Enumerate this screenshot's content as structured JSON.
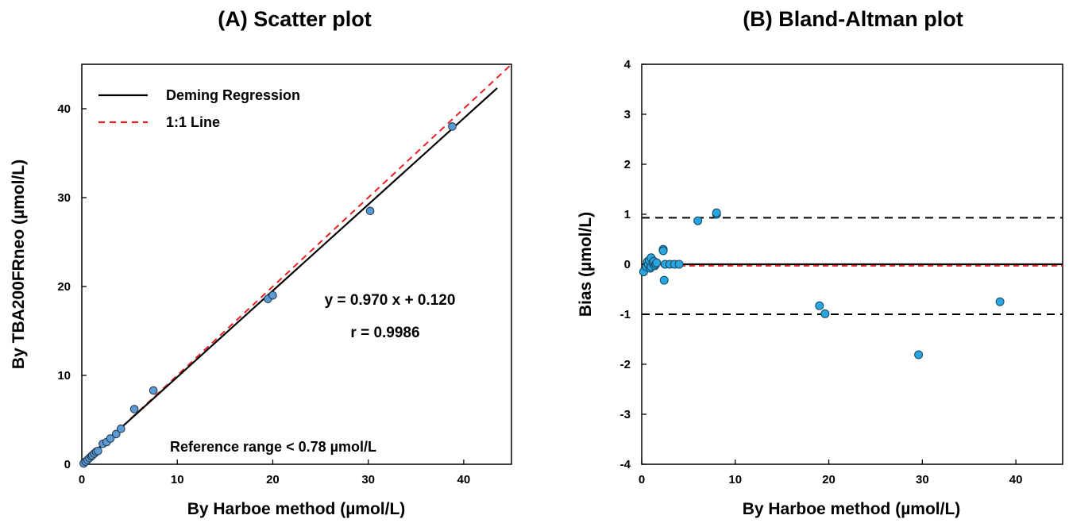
{
  "chart_data": [
    {
      "type": "scatter",
      "title": "(A) Scatter plot",
      "xlabel": "By Harboe method (µmol/L)",
      "ylabel": "By TBA200FRneo (µmol/L)",
      "xlim": [
        0,
        45
      ],
      "ylim": [
        0,
        45
      ],
      "xticks": [
        0,
        10,
        20,
        30,
        40
      ],
      "yticks": [
        0,
        10,
        20,
        30,
        40
      ],
      "grid": false,
      "legend_position": "top-left",
      "series": [
        {
          "name": "",
          "color": "#5b9bd5",
          "points": [
            [
              0.2,
              0.1
            ],
            [
              0.4,
              0.3
            ],
            [
              0.6,
              0.5
            ],
            [
              0.8,
              0.7
            ],
            [
              1.0,
              0.9
            ],
            [
              1.1,
              1.0
            ],
            [
              1.3,
              1.2
            ],
            [
              1.5,
              1.4
            ],
            [
              1.7,
              1.5
            ],
            [
              2.2,
              2.3
            ],
            [
              2.6,
              2.5
            ],
            [
              3.0,
              2.9
            ],
            [
              3.6,
              3.4
            ],
            [
              4.1,
              4.0
            ],
            [
              5.5,
              6.2
            ],
            [
              7.5,
              8.3
            ],
            [
              19.5,
              18.6
            ],
            [
              20.0,
              19.0
            ],
            [
              30.2,
              28.5
            ],
            [
              38.8,
              38.0
            ]
          ]
        },
        {
          "name": "Deming Regression",
          "color": "#000000",
          "line": {
            "slope": 0.97,
            "intercept": 0.12,
            "x_range": [
              0,
              43.5
            ]
          }
        },
        {
          "name": "1:1 Line",
          "color": "#e8201f",
          "line": {
            "slope": 1,
            "intercept": 0,
            "x_range": [
              0,
              45
            ]
          }
        }
      ],
      "annotations": {
        "equation": "y = 0.970 x + 0.120",
        "r": "r = 0.9986",
        "reference": "Reference range < 0.78 µmol/L"
      }
    },
    {
      "type": "scatter",
      "title": "(B) Bland-Altman plot",
      "xlabel": "By Harboe method (µmol/L)",
      "ylabel": "Bias (µmol/L)",
      "xlim": [
        0,
        45
      ],
      "ylim": [
        -4,
        4
      ],
      "xticks": [
        0,
        10,
        20,
        30,
        40
      ],
      "yticks": [
        -4,
        -3,
        -2,
        -1,
        0,
        1,
        2,
        3,
        4
      ],
      "grid": false,
      "series": [
        {
          "name": "",
          "color": "#29a6e0",
          "points": [
            [
              0.2,
              -0.15
            ],
            [
              0.5,
              -0.05
            ],
            [
              0.6,
              0.05
            ],
            [
              0.7,
              0.0
            ],
            [
              0.8,
              0.08
            ],
            [
              0.9,
              -0.08
            ],
            [
              1.0,
              0.13
            ],
            [
              1.0,
              -0.05
            ],
            [
              1.2,
              0.02
            ],
            [
              1.3,
              0.06
            ],
            [
              1.4,
              -0.03
            ],
            [
              1.5,
              0.0
            ],
            [
              1.6,
              0.03
            ],
            [
              2.3,
              0.3
            ],
            [
              2.3,
              0.27
            ],
            [
              2.4,
              -0.32
            ],
            [
              2.5,
              0.0
            ],
            [
              3.0,
              0.0
            ],
            [
              3.5,
              0.0
            ],
            [
              4.0,
              0.0
            ],
            [
              6.0,
              0.87
            ],
            [
              8.0,
              1.0
            ],
            [
              8.0,
              1.03
            ],
            [
              19.0,
              -0.83
            ],
            [
              19.6,
              -0.99
            ],
            [
              29.6,
              -1.81
            ],
            [
              38.3,
              -0.75
            ]
          ]
        }
      ],
      "reference_lines": {
        "mean_bias": -0.03,
        "upper_loa": 0.93,
        "lower_loa": -1.0,
        "zero": 0
      }
    }
  ]
}
